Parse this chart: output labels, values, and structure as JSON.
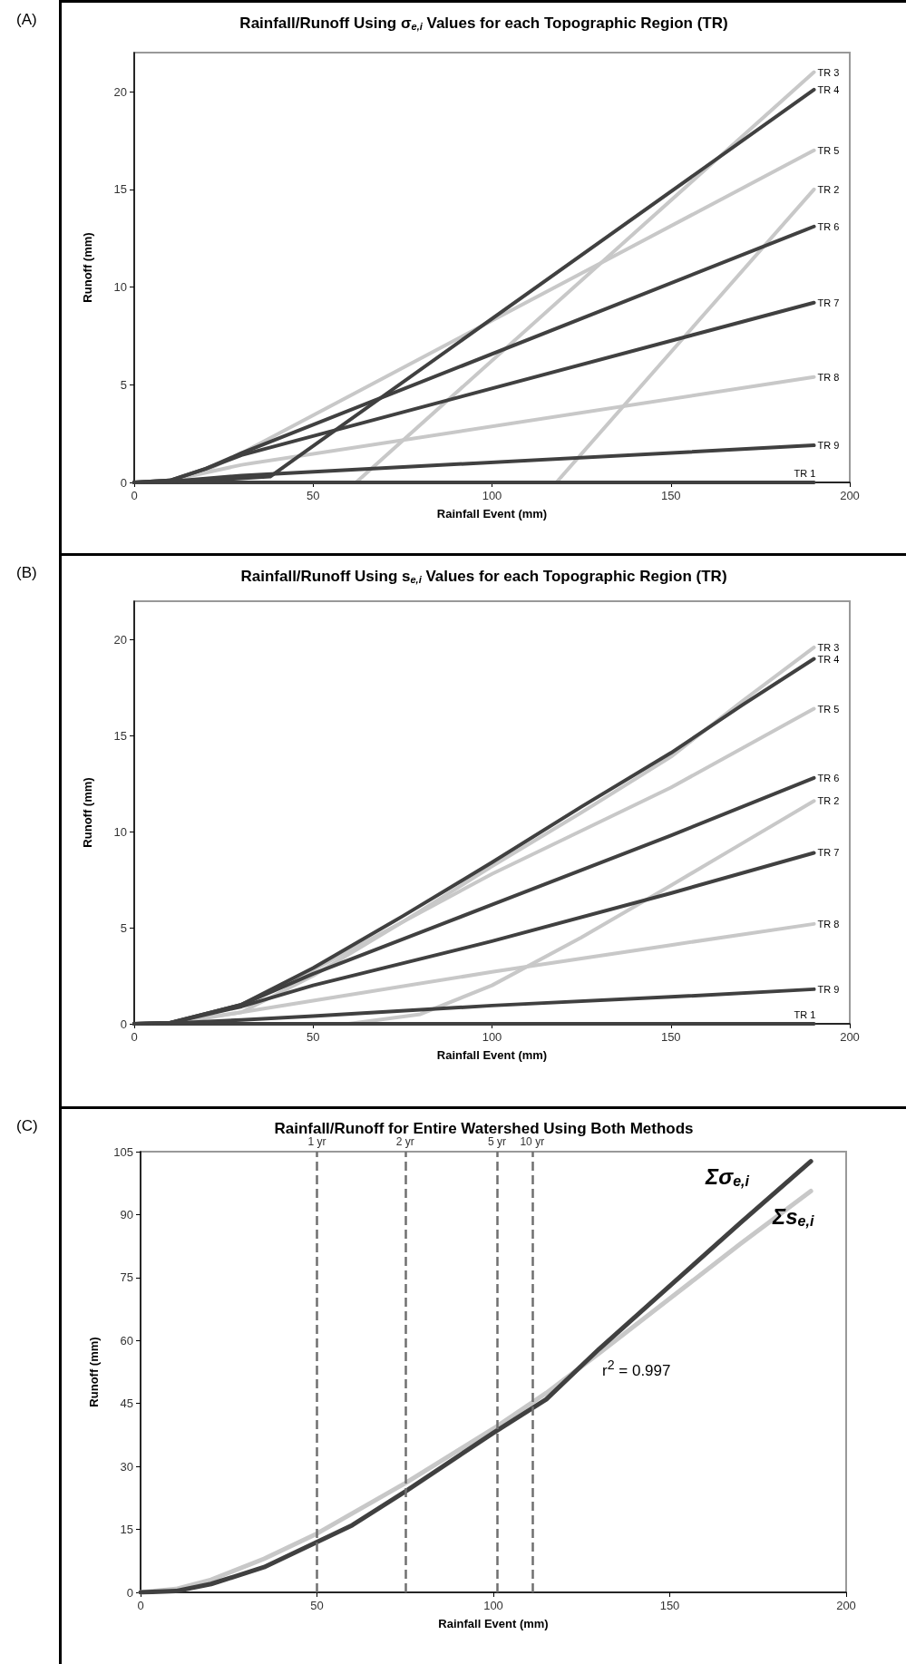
{
  "chart_data": [
    {
      "type": "line",
      "title": "Rainfall/Runoff Using σ$_{e,i}$ Values for each Topographic Region (TR)",
      "xlabel": "Rainfall Event (mm)",
      "ylabel": "Runoff (mm)",
      "xlim": [
        0,
        200
      ],
      "ylim": [
        0,
        22
      ],
      "xticks": [
        0,
        50,
        100,
        150,
        200
      ],
      "yticks": [
        0,
        5,
        10,
        15,
        20
      ],
      "marker": "none",
      "annotations": [
        "(A)"
      ],
      "series": [
        {
          "name": "TR 1",
          "color": "#404040",
          "x": [
            0,
            190
          ],
          "values": [
            0,
            0
          ]
        },
        {
          "name": "TR 2",
          "color": "#c8c8c8",
          "x": [
            0,
            118,
            190
          ],
          "values": [
            0,
            0,
            15.0
          ]
        },
        {
          "name": "TR 3",
          "color": "#c8c8c8",
          "x": [
            0,
            62,
            190
          ],
          "values": [
            0,
            0,
            21.0
          ]
        },
        {
          "name": "TR 4",
          "color": "#404040",
          "x": [
            0,
            10,
            20,
            38,
            190
          ],
          "values": [
            0,
            0,
            0.1,
            0.3,
            20.1
          ]
        },
        {
          "name": "TR 5",
          "color": "#c8c8c8",
          "x": [
            0,
            10,
            20,
            30,
            190
          ],
          "values": [
            0,
            0.1,
            0.6,
            1.5,
            17.0
          ]
        },
        {
          "name": "TR 6",
          "color": "#404040",
          "x": [
            0,
            10,
            20,
            30,
            190
          ],
          "values": [
            0,
            0.1,
            0.7,
            1.5,
            13.1
          ]
        },
        {
          "name": "TR 7",
          "color": "#404040",
          "x": [
            0,
            10,
            20,
            30,
            190
          ],
          "values": [
            0,
            0.1,
            0.7,
            1.4,
            9.2
          ]
        },
        {
          "name": "TR 8",
          "color": "#c8c8c8",
          "x": [
            0,
            10,
            20,
            30,
            190
          ],
          "values": [
            0,
            0.1,
            0.5,
            0.9,
            5.4
          ]
        },
        {
          "name": "TR 9",
          "color": "#404040",
          "x": [
            0,
            10,
            20,
            30,
            190
          ],
          "values": [
            0,
            0.05,
            0.2,
            0.35,
            1.9
          ]
        }
      ]
    },
    {
      "type": "line",
      "title": "Rainfall/Runoff Using s$_{e,i}$ Values for each Topographic Region (TR)",
      "xlabel": "Rainfall Event (mm)",
      "ylabel": "Runoff (mm)",
      "xlim": [
        0,
        200
      ],
      "ylim": [
        0,
        22
      ],
      "xticks": [
        0,
        50,
        100,
        150,
        200
      ],
      "yticks": [
        0,
        5,
        10,
        15,
        20
      ],
      "marker": "none",
      "annotations": [
        "(B)"
      ],
      "series": [
        {
          "name": "TR 1",
          "color": "#404040",
          "x": [
            0,
            190
          ],
          "values": [
            0,
            0
          ]
        },
        {
          "name": "TR 2",
          "color": "#c8c8c8",
          "x": [
            0,
            60,
            80,
            100,
            125,
            150,
            170,
            190
          ],
          "values": [
            0,
            0,
            0.5,
            2.0,
            4.5,
            7.2,
            9.4,
            11.6
          ]
        },
        {
          "name": "TR 3",
          "color": "#c8c8c8",
          "x": [
            0,
            10,
            30,
            50,
            75,
            100,
            125,
            150,
            170,
            190
          ],
          "values": [
            0,
            0,
            0.6,
            2.5,
            5.3,
            8.2,
            11.0,
            13.9,
            16.8,
            19.6
          ]
        },
        {
          "name": "TR 4",
          "color": "#404040",
          "x": [
            0,
            10,
            30,
            50,
            75,
            100,
            125,
            150,
            170,
            190
          ],
          "values": [
            0,
            0.05,
            1.0,
            2.9,
            5.6,
            8.4,
            11.3,
            14.1,
            16.6,
            19.0
          ]
        },
        {
          "name": "TR 5",
          "color": "#c8c8c8",
          "x": [
            0,
            10,
            30,
            50,
            75,
            100,
            150,
            190
          ],
          "values": [
            0,
            0.05,
            1.0,
            2.8,
            5.3,
            7.8,
            12.3,
            16.4
          ]
        },
        {
          "name": "TR 6",
          "color": "#404040",
          "x": [
            0,
            10,
            30,
            50,
            100,
            150,
            190
          ],
          "values": [
            0,
            0.05,
            1.0,
            2.6,
            6.2,
            9.8,
            12.8
          ]
        },
        {
          "name": "TR 7",
          "color": "#404040",
          "x": [
            0,
            10,
            30,
            50,
            100,
            150,
            190
          ],
          "values": [
            0,
            0.05,
            0.9,
            2.0,
            4.3,
            6.8,
            8.9
          ]
        },
        {
          "name": "TR 8",
          "color": "#c8c8c8",
          "x": [
            0,
            10,
            30,
            50,
            100,
            150,
            190
          ],
          "values": [
            0,
            0.05,
            0.6,
            1.2,
            2.7,
            4.1,
            5.2
          ]
        },
        {
          "name": "TR 9",
          "color": "#404040",
          "x": [
            0,
            10,
            30,
            50,
            100,
            150,
            190
          ],
          "values": [
            0,
            0.02,
            0.2,
            0.4,
            0.95,
            1.4,
            1.8
          ]
        }
      ]
    },
    {
      "type": "line",
      "title": "Rainfall/Runoff for Entire Watershed Using Both Methods",
      "xlabel": "Rainfall Event (mm)",
      "ylabel": "Runoff (mm)",
      "xlim": [
        0,
        200
      ],
      "ylim": [
        0,
        105
      ],
      "xticks": [
        0,
        50,
        100,
        150,
        200
      ],
      "yticks": [
        0,
        15,
        30,
        45,
        60,
        75,
        90,
        105
      ],
      "marker": "none",
      "annotations": [
        "(C)",
        "r$^{2}$ = 0.997"
      ],
      "ref_lines": [
        {
          "axis": "x",
          "value": 50,
          "label": "1 yr",
          "color": "#707070",
          "line_style": "dashed"
        },
        {
          "axis": "x",
          "value": 75,
          "label": "2 yr",
          "color": "#707070",
          "line_style": "dashed"
        },
        {
          "axis": "x",
          "value": 101,
          "label": "5 yr",
          "color": "#707070",
          "line_style": "dashed"
        },
        {
          "axis": "x",
          "value": 111,
          "label": "10 yr",
          "color": "#707070",
          "line_style": "dashed"
        }
      ],
      "series": [
        {
          "name": "Σσ$_{e,i}$",
          "color": "#404040",
          "x": [
            0,
            10,
            20,
            35,
            50,
            60,
            75,
            100,
            115,
            130,
            150,
            170,
            190
          ],
          "values": [
            0,
            0.3,
            2,
            6,
            12,
            16,
            24,
            38,
            46,
            58,
            73,
            88,
            102.7
          ]
        },
        {
          "name": "Σs$_{e,i}$",
          "color": "#c8c8c8",
          "x": [
            0,
            10,
            20,
            35,
            50,
            75,
            100,
            115,
            130,
            150,
            170,
            190
          ],
          "values": [
            0,
            0.8,
            3,
            8,
            14,
            26,
            39,
            47.5,
            57,
            70,
            83,
            95.6
          ]
        }
      ]
    }
  ]
}
